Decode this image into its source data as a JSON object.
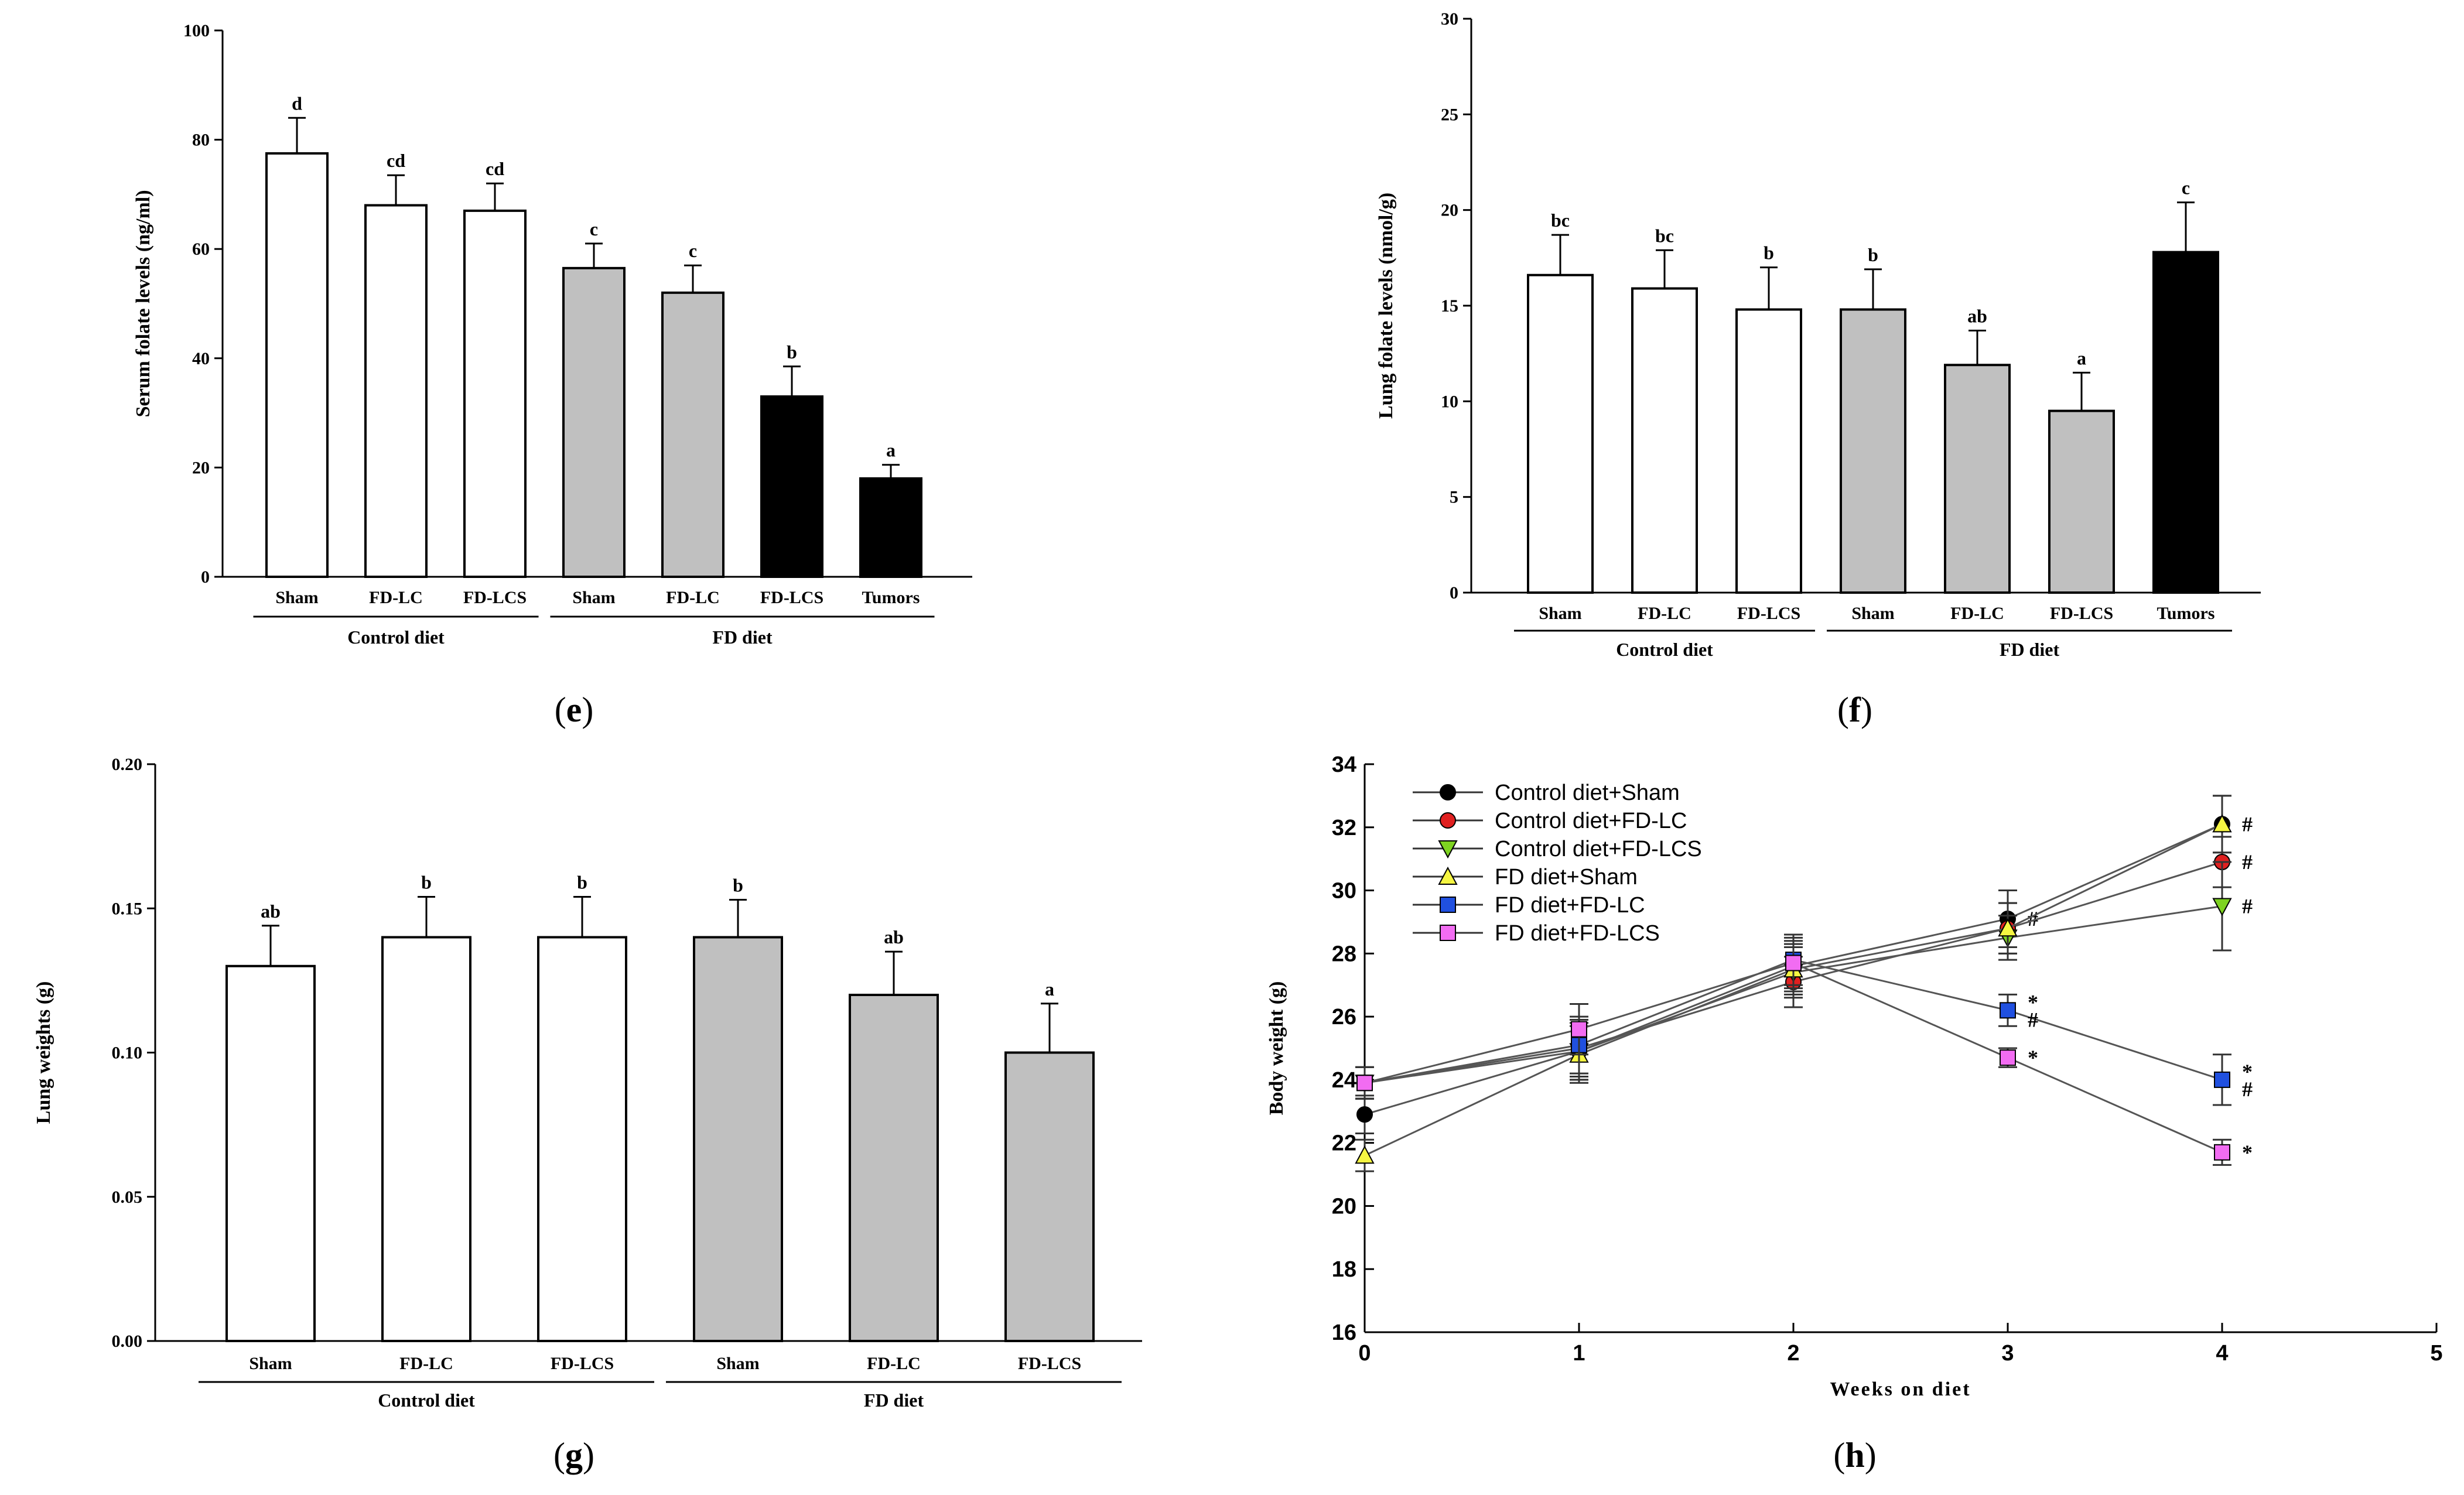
{
  "panels": {
    "e": {
      "label": "e"
    },
    "f": {
      "label": "f"
    },
    "g": {
      "label": "g"
    },
    "h": {
      "label": "h"
    }
  },
  "chart_data": [
    {
      "id": "e",
      "type": "bar",
      "ylabel": "Serum folate levels (ng/ml)",
      "ylim": [
        0,
        100
      ],
      "yticks": [
        "0",
        "20",
        "40",
        "60",
        "80",
        "100"
      ],
      "categories": [
        "Sham",
        "FD-LC",
        "FD-LCS",
        "Sham",
        "FD-LC",
        "FD-LCS",
        "Tumors"
      ],
      "values": [
        77.5,
        68,
        67,
        56.5,
        52,
        33,
        18
      ],
      "errors": [
        6.5,
        5.5,
        5,
        4.5,
        5,
        5.5,
        2.5
      ],
      "fills": [
        "#ffffff",
        "#ffffff",
        "#ffffff",
        "#c0c0c0",
        "#c0c0c0",
        "#000000",
        "#000000"
      ],
      "sig": [
        "d",
        "cd",
        "cd",
        "c",
        "c",
        "b",
        "a"
      ],
      "groups": [
        {
          "label": "Control diet",
          "from": 0,
          "to": 2
        },
        {
          "label": "FD diet",
          "from": 3,
          "to": 6
        }
      ]
    },
    {
      "id": "f",
      "type": "bar",
      "ylabel": "Lung folate levels (nmol/g)",
      "ylim": [
        0,
        30
      ],
      "yticks": [
        "0",
        "5",
        "10",
        "15",
        "20",
        "25",
        "30"
      ],
      "categories": [
        "Sham",
        "FD-LC",
        "FD-LCS",
        "Sham",
        "FD-LC",
        "FD-LCS",
        "Tumors"
      ],
      "values": [
        16.6,
        15.9,
        14.8,
        14.8,
        11.9,
        9.5,
        17.8
      ],
      "errors": [
        2.1,
        2.0,
        2.2,
        2.1,
        1.8,
        2.0,
        2.6
      ],
      "fills": [
        "#ffffff",
        "#ffffff",
        "#ffffff",
        "#c0c0c0",
        "#c0c0c0",
        "#c0c0c0",
        "#000000"
      ],
      "sig": [
        "bc",
        "bc",
        "b",
        "b",
        "ab",
        "a",
        "c"
      ],
      "groups": [
        {
          "label": "Control diet",
          "from": 0,
          "to": 2
        },
        {
          "label": "FD diet",
          "from": 3,
          "to": 6
        }
      ]
    },
    {
      "id": "g",
      "type": "bar",
      "ylabel": "Lung weights (g)",
      "ylim": [
        0,
        0.2
      ],
      "yticks": [
        "0.00",
        "0.05",
        "0.10",
        "0.15",
        "0.20"
      ],
      "categories": [
        "Sham",
        "FD-LC",
        "FD-LCS",
        "Sham",
        "FD-LC",
        "FD-LCS"
      ],
      "values": [
        0.13,
        0.14,
        0.14,
        0.14,
        0.12,
        0.1
      ],
      "errors": [
        0.014,
        0.014,
        0.014,
        0.013,
        0.015,
        0.017
      ],
      "fills": [
        "#ffffff",
        "#ffffff",
        "#ffffff",
        "#c0c0c0",
        "#c0c0c0",
        "#c0c0c0"
      ],
      "sig": [
        "ab",
        "b",
        "b",
        "b",
        "ab",
        "a"
      ],
      "groups": [
        {
          "label": "Control diet",
          "from": 0,
          "to": 2
        },
        {
          "label": "FD diet",
          "from": 3,
          "to": 5
        }
      ]
    },
    {
      "id": "h",
      "type": "line",
      "xlabel": "Weeks on diet",
      "ylabel": "Body weight (g)",
      "xlim": [
        0,
        5
      ],
      "ylim": [
        16,
        34
      ],
      "xticks": [
        "0",
        "1",
        "2",
        "3",
        "4",
        "5"
      ],
      "yticks": [
        "16",
        "18",
        "20",
        "22",
        "24",
        "26",
        "28",
        "30",
        "32",
        "34"
      ],
      "x": [
        0,
        1,
        2,
        3,
        4
      ],
      "series": [
        {
          "name": "Control diet+Sham",
          "color": "#000000",
          "marker": "circle",
          "values": [
            22.9,
            24.9,
            27.6,
            29.1,
            32.1
          ],
          "errors": [
            0.6,
            0.9,
            0.8,
            0.9,
            0.9
          ],
          "marks": [
            "",
            "",
            "",
            "#",
            "#"
          ]
        },
        {
          "name": "Control diet+FD-LC",
          "color": "#e02020",
          "marker": "circle",
          "values": [
            23.9,
            25.0,
            27.1,
            28.8,
            30.9
          ],
          "errors": [
            0.5,
            0.9,
            0.8,
            0.8,
            0.8
          ],
          "marks": [
            "",
            "",
            "",
            "",
            "#"
          ]
        },
        {
          "name": "Control diet+FD-LCS",
          "color": "#7ed321",
          "marker": "triangle-down",
          "values": [
            23.9,
            24.9,
            27.4,
            28.5,
            29.5
          ],
          "errors": [
            0.5,
            0.9,
            0.8,
            0.7,
            1.4
          ],
          "marks": [
            "",
            "",
            "",
            "",
            "#"
          ]
        },
        {
          "name": "FD diet+Sham",
          "color": "#f5f542",
          "marker": "triangle-up",
          "values": [
            21.6,
            24.8,
            27.5,
            28.8,
            32.1
          ],
          "errors": [
            0.5,
            0.9,
            0.8,
            0.8,
            0.9
          ],
          "marks": [
            "",
            "",
            "",
            "",
            ""
          ]
        },
        {
          "name": "FD diet+FD-LC",
          "color": "#2050e0",
          "marker": "square",
          "values": [
            23.9,
            25.1,
            27.8,
            26.2,
            24.0
          ],
          "errors": [
            0.5,
            0.9,
            0.8,
            0.5,
            0.8
          ],
          "marks": [
            "",
            "",
            "",
            "*#",
            "*#"
          ]
        },
        {
          "name": "FD diet+FD-LCS",
          "color": "#f26cf2",
          "marker": "square",
          "values": [
            23.9,
            25.6,
            27.7,
            24.7,
            21.7
          ],
          "errors": [
            0.5,
            0.8,
            0.8,
            0.3,
            0.4
          ],
          "marks": [
            "",
            "",
            "",
            "*",
            "*"
          ]
        }
      ]
    }
  ]
}
